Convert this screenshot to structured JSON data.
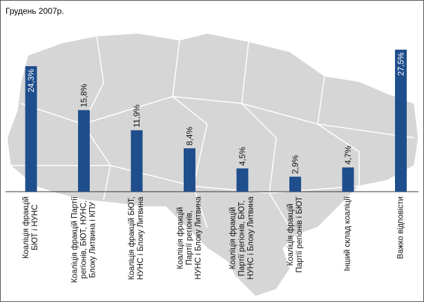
{
  "chart_data": {
    "type": "bar",
    "title": "Грудень 2007р.",
    "categories": [
      "Коаліція фракцій\nБЮТ і НУНС",
      "Коаліція фракцій Партії\nрегіонів, БЮТ, НУНС,\nБлоку Литвина і КПУ",
      "Коаліція фракцій БЮТ,\nНУНС і Блоку Литвина",
      "Коаліція фракцій\nПартії регіонів,\nНУНС і Блоку Литвина",
      "Коаліція фракцій\nПартії регіонів, БЮТ,\nНУНС і Блоку Литвина",
      "Коаліція фракцій\nПартії регіонів і БЮТ",
      "Інший склад коаліції",
      "Важко відповісти"
    ],
    "values": [
      24.3,
      15.8,
      11.9,
      8.4,
      4.5,
      2.9,
      4.7,
      27.5
    ],
    "value_labels": [
      "24,3%",
      "15,8%",
      "11,9%",
      "8,4%",
      "4,5%",
      "2,9%",
      "4,7%",
      "27,5%"
    ],
    "color": "#1f4e8c"
  }
}
